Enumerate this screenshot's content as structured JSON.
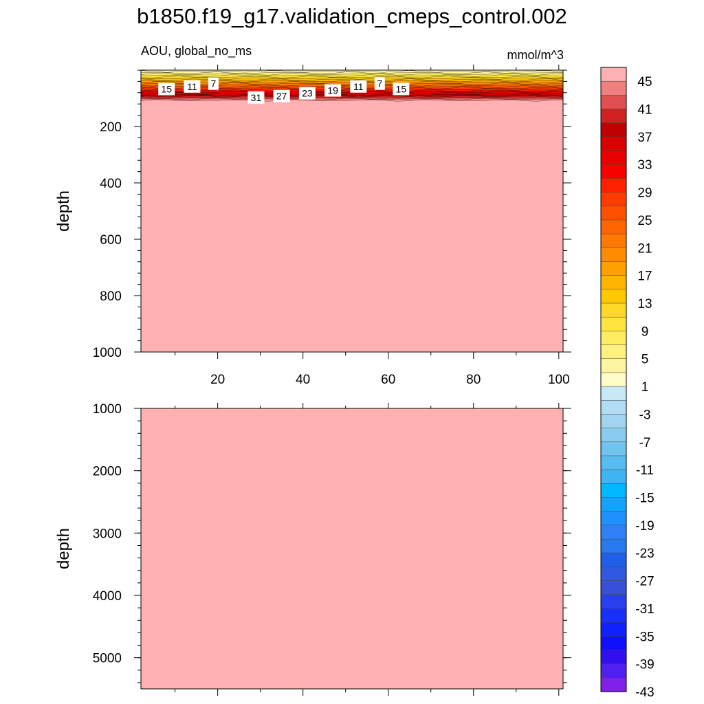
{
  "title": "b1850.f19_g17.validation_cmeps_control.002",
  "chart_data": {
    "type": "heatmap",
    "variable_label": "AOU, global_no_ms",
    "units": "mmol/m^3",
    "xlim": [
      2,
      101
    ],
    "x_ticks": [
      "20",
      "40",
      "60",
      "80",
      "100"
    ],
    "upper_panel": {
      "ylabel": "depth",
      "ylim": [
        0,
        1000
      ],
      "y_ticks": [
        "200",
        "400",
        "600",
        "800",
        "1000"
      ],
      "y_tick_values": [
        200,
        400,
        600,
        800,
        1000
      ],
      "field": "AOU increases from about 0 at the surface to above 45 near 100-110 m; uniformly above 45 below",
      "contour_labels": [
        {
          "text": "15",
          "x": 8,
          "depth": 67
        },
        {
          "text": "11",
          "x": 14,
          "depth": 58
        },
        {
          "text": "7",
          "x": 19,
          "depth": 48
        },
        {
          "text": "31",
          "x": 29,
          "depth": 97
        },
        {
          "text": "27",
          "x": 35,
          "depth": 92
        },
        {
          "text": "23",
          "x": 41,
          "depth": 82
        },
        {
          "text": "19",
          "x": 47,
          "depth": 72
        },
        {
          "text": "11",
          "x": 53,
          "depth": 58
        },
        {
          "text": "7",
          "x": 58,
          "depth": 48
        },
        {
          "text": "15",
          "x": 63,
          "depth": 67
        }
      ]
    },
    "lower_panel": {
      "ylabel": "depth",
      "ylim": [
        1000,
        5500
      ],
      "y_ticks": [
        "1000",
        "2000",
        "3000",
        "4000",
        "5000"
      ],
      "y_tick_values": [
        1000,
        2000,
        3000,
        4000,
        5000
      ],
      "field": "uniformly above 45 at all depths"
    },
    "colorbar": {
      "labels": [
        "45",
        "41",
        "37",
        "33",
        "29",
        "25",
        "21",
        "17",
        "13",
        "9",
        "5",
        "1",
        "-3",
        "-7",
        "-11",
        "-15",
        "-19",
        "-23",
        "-27",
        "-31",
        "-35",
        "-39",
        "-43"
      ],
      "colors_top_to_bottom": [
        "#ffb0b0",
        "#f08080",
        "#e05050",
        "#d02020",
        "#c00000",
        "#d80000",
        "#e80000",
        "#f80000",
        "#ff2000",
        "#ff3c00",
        "#ff5000",
        "#ff6400",
        "#ff7800",
        "#ff8c00",
        "#ffa000",
        "#ffb400",
        "#ffc800",
        "#ffd828",
        "#ffe440",
        "#ffec60",
        "#fff080",
        "#fff4a0",
        "#fffcc8",
        "#c8e8f8",
        "#b0dcf4",
        "#a0d4f0",
        "#88ccf0",
        "#70c4f0",
        "#58bcf0",
        "#40b4f0",
        "#00b8ff",
        "#10a4ff",
        "#2090ff",
        "#3080f8",
        "#2878f0",
        "#2060e8",
        "#3058e0",
        "#3850d8",
        "#2840f0",
        "#1830f8",
        "#1020ff",
        "#1010ff",
        "#3010f0",
        "#5020f0",
        "#8020e8"
      ]
    }
  }
}
